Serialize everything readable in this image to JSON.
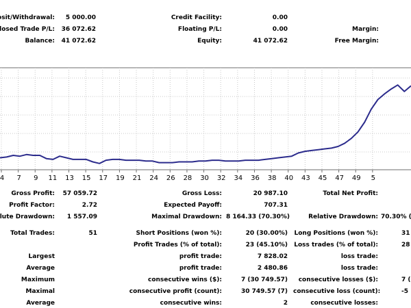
{
  "summary": {
    "deposit_label": "osit/Withdrawal:",
    "deposit_value": "5 000.00",
    "closed_pl_label": "Closed Trade P/L:",
    "closed_pl_value": "36 072.62",
    "balance_label": "Balance:",
    "balance_value": "41 072.62",
    "credit_label": "Credit Facility:",
    "credit_value": "0.00",
    "floating_label": "Floating P/L:",
    "floating_value": "0.00",
    "equity_label": "Equity:",
    "equity_value": "41 072.62",
    "margin_label": "Margin:",
    "free_margin_label": "Free Margin:"
  },
  "chart_data": {
    "type": "line",
    "x_ticks": [
      "4",
      "7",
      "9",
      "11",
      "13",
      "15",
      "17",
      "19",
      "21",
      "24",
      "26",
      "28",
      "30",
      "32",
      "34",
      "36",
      "38",
      "40",
      "43",
      "45",
      "47",
      "49",
      "5"
    ],
    "series": [
      {
        "values": [
          8,
          9,
          11,
          10,
          12,
          11,
          11,
          7,
          6,
          10,
          8,
          6,
          6,
          6,
          3,
          1,
          5,
          6,
          6,
          5,
          5,
          5,
          4,
          4,
          2,
          2,
          2,
          3,
          3,
          3,
          4,
          4,
          5,
          5,
          4,
          4,
          4,
          5,
          5,
          5,
          6,
          7,
          8,
          9,
          10,
          14,
          16,
          17,
          18,
          19,
          20,
          22,
          26,
          32,
          40,
          52,
          68,
          80,
          87,
          93,
          98,
          90,
          97
        ]
      }
    ],
    "line_color": "#2b2b8c",
    "grid": true,
    "ylim": [
      0,
      110
    ]
  },
  "stats": {
    "gross_profit_label": "Gross Profit:",
    "gross_profit_value": "57 059.72",
    "profit_factor_label": "Profit Factor:",
    "profit_factor_value": "2.72",
    "abs_drawdown_label": "olute Drawdown:",
    "abs_drawdown_value": "1 557.09",
    "total_trades_label": "Total Trades:",
    "total_trades_value": "51",
    "largest_label": "Largest",
    "average_label": "Average",
    "maximum_label": "Maximum",
    "maximal_label": "Maximal",
    "average2_label": "Average",
    "gross_loss_label": "Gross Loss:",
    "gross_loss_value": "20 987.10",
    "expected_payoff_label": "Expected Payoff:",
    "expected_payoff_value": "707.31",
    "max_drawdown_label": "Maximal Drawdown:",
    "max_drawdown_value": "8 164.33 (70.30%)",
    "short_positions_label": "Short Positions (won %):",
    "short_positions_value": "20 (30.00%)",
    "profit_trades_label": "Profit Trades (% of total):",
    "profit_trades_value": "23 (45.10%)",
    "largest_profit_label": "profit trade:",
    "largest_profit_value": "7 828.02",
    "average_profit_label": "profit trade:",
    "average_profit_value": "2 480.86",
    "max_consec_wins_label": "consecutive wins ($):",
    "max_consec_wins_value": "7 (30 749.57)",
    "maximal_consec_profit_label": "consecutive profit (count):",
    "maximal_consec_profit_value": "30 749.57 (7)",
    "avg_consec_wins_label": "consecutive wins:",
    "avg_consec_wins_value": "2",
    "total_net_profit_label": "Total Net Profit:",
    "relative_drawdown_label": "Relative Drawdown:",
    "relative_drawdown_value": "70.30% (",
    "long_positions_label": "Long Positions (won %):",
    "long_positions_value": "31",
    "loss_trades_label": "Loss trades (% of total):",
    "loss_trades_value": "28",
    "largest_loss_label": "loss trade:",
    "average_loss_label": "loss trade:",
    "max_consec_losses_label": "consecutive losses ($):",
    "max_consec_losses_value": "7 (",
    "maximal_consec_loss_label": "consecutive loss (count):",
    "maximal_consec_loss_value": "-5",
    "avg_consec_losses_label": "consecutive losses:"
  }
}
